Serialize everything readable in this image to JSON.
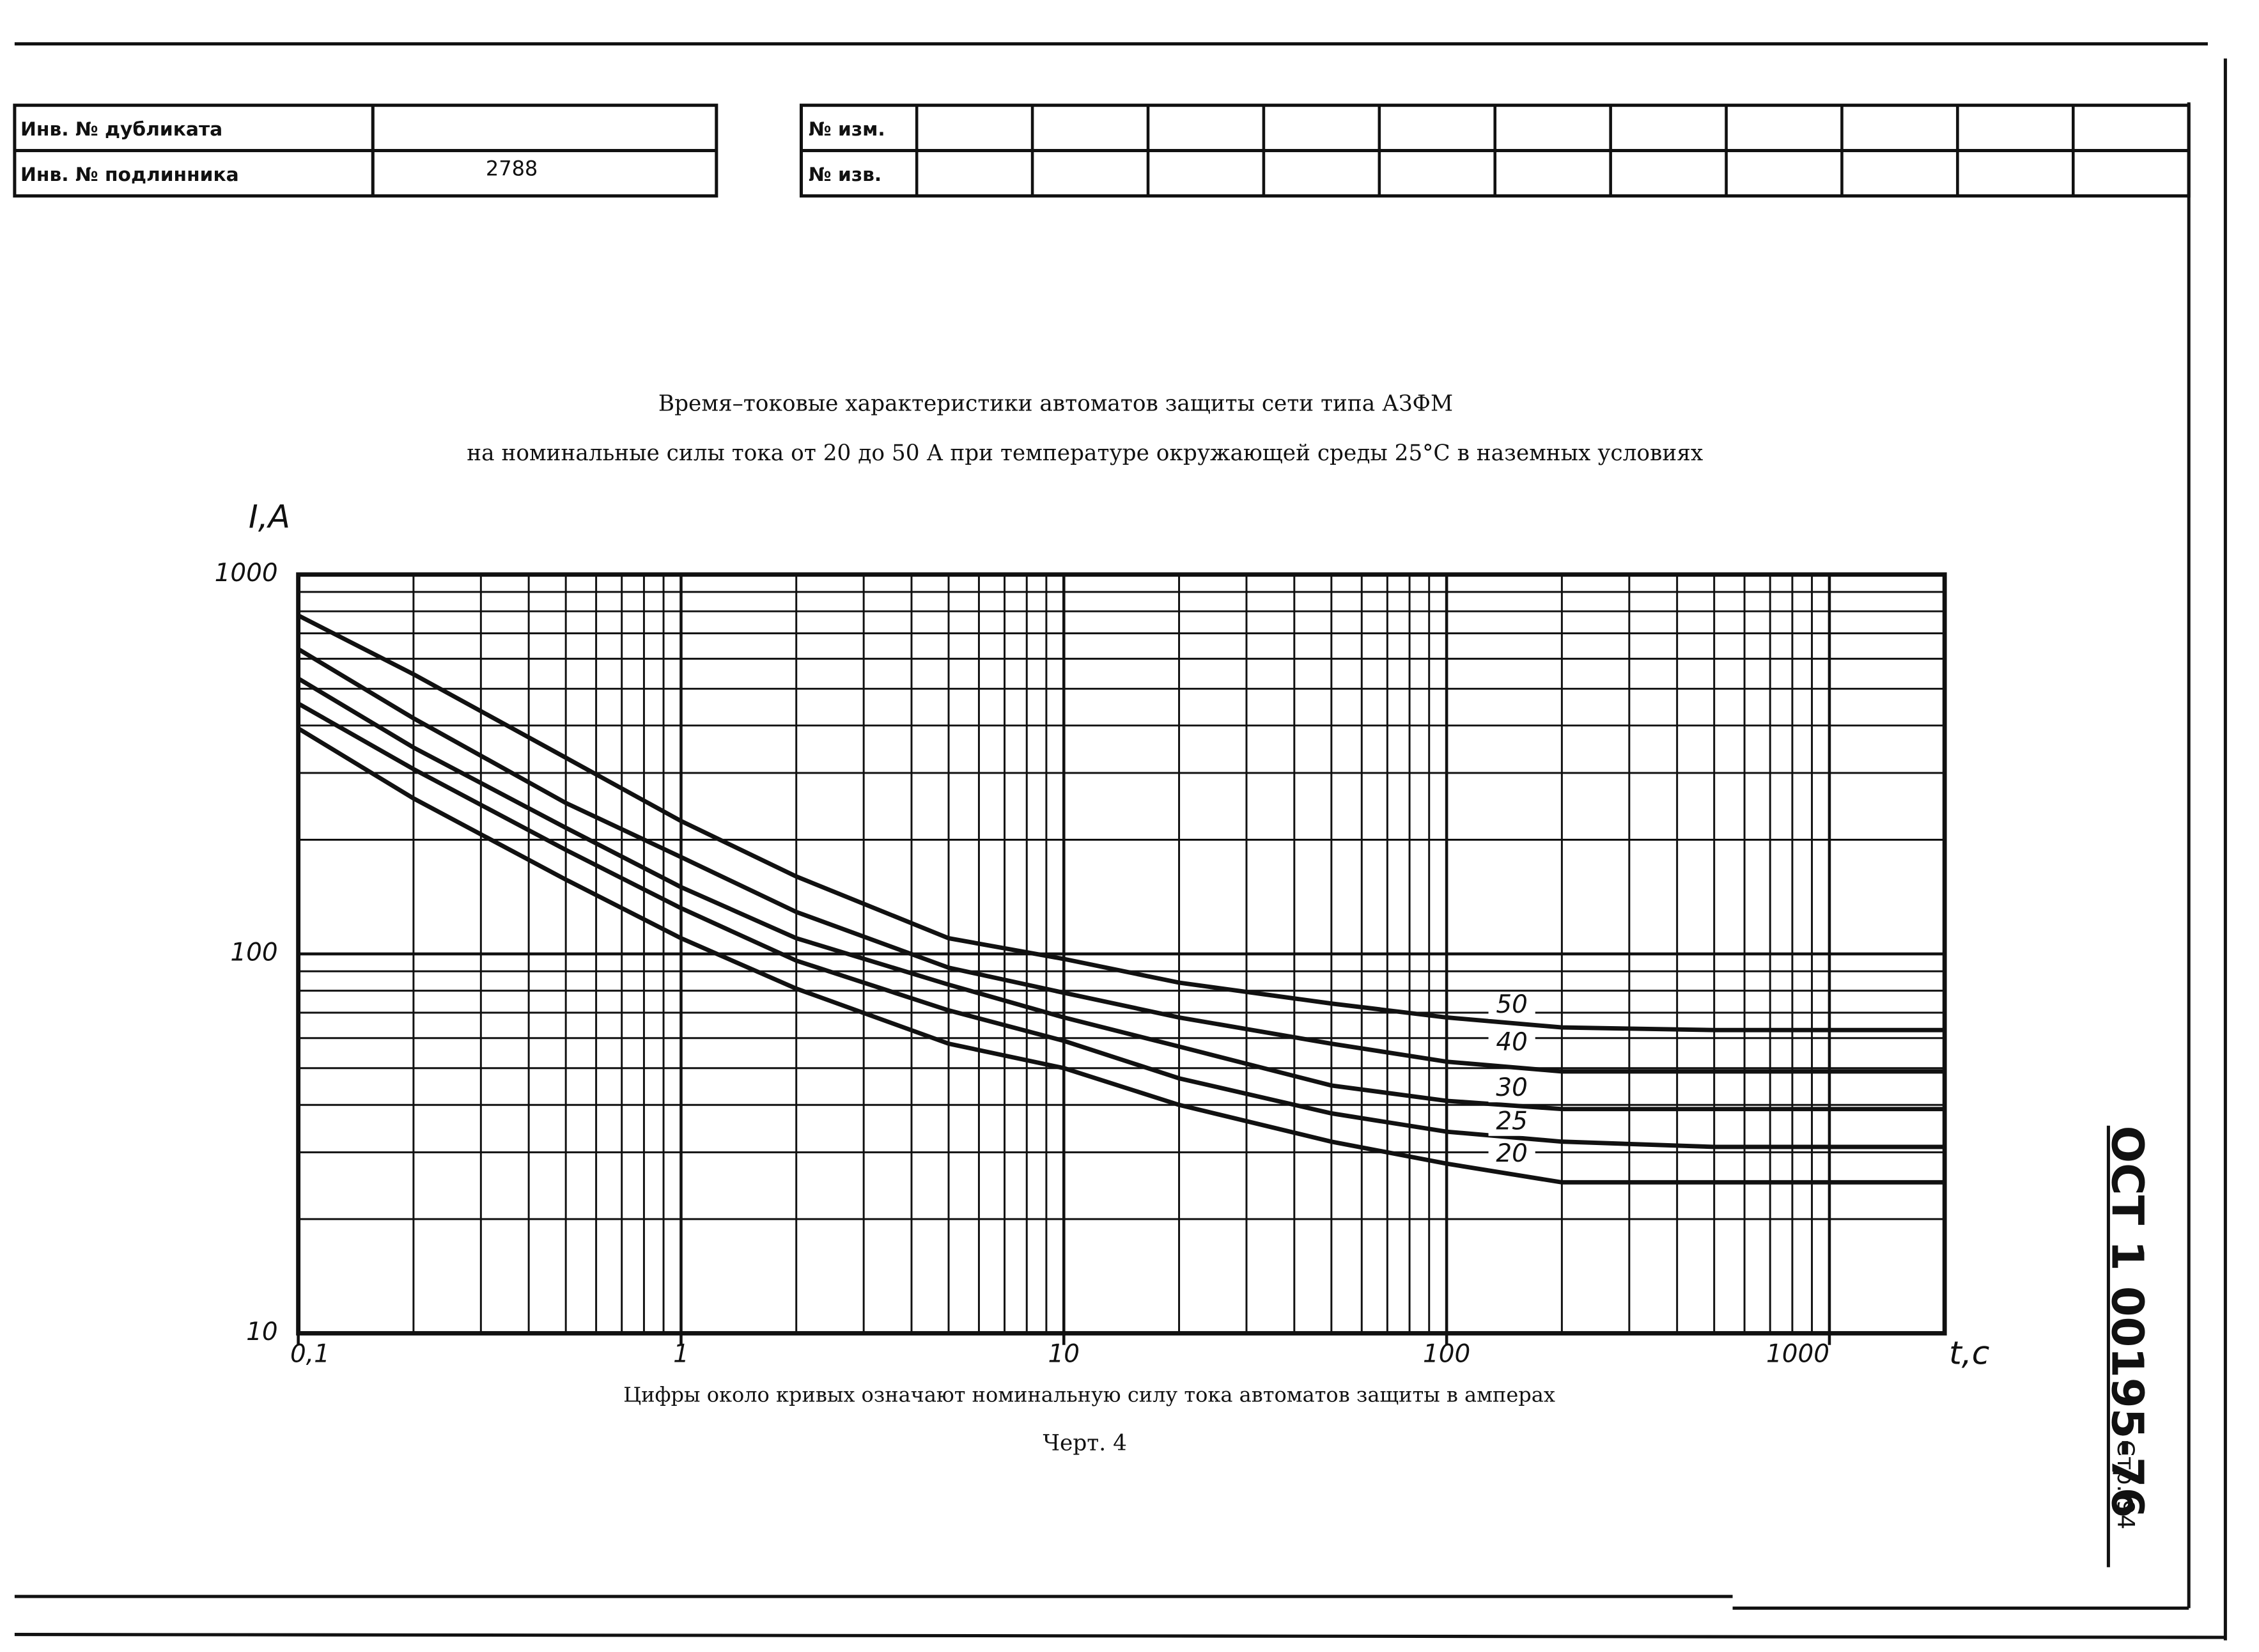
{
  "header": {
    "rows": [
      [
        "Инв. № дубликата",
        ""
      ],
      [
        "Инв. № подлинника",
        "2788"
      ]
    ],
    "change_rows": [
      "№ изм.",
      "№ изв."
    ]
  },
  "chart_data": {
    "type": "line",
    "title": "Время–токовые характеристики автоматов защиты сети типа АЗФМ",
    "subtitle": "на номинальные силы тока от 20 до 50 А при температуре окружающей среды 25°С в наземных условиях",
    "y_label": "I,A",
    "x_label": "t,c",
    "x": [
      0.1,
      0.2,
      0.5,
      1,
      2,
      5,
      10,
      20,
      50,
      100,
      200,
      500,
      2000
    ],
    "series": [
      {
        "name": "20",
        "color": "#111111",
        "values": [
          393,
          257,
          157,
          110,
          81,
          58,
          50,
          40,
          32,
          28,
          25,
          25,
          25
        ]
      },
      {
        "name": "25",
        "color": "#111111",
        "values": [
          457,
          307,
          188,
          132,
          96,
          71,
          59,
          47,
          38,
          34,
          32,
          31,
          31
        ]
      },
      {
        "name": "30",
        "color": "#111111",
        "values": [
          532,
          350,
          215,
          150,
          110,
          83,
          68,
          57,
          45,
          41,
          39,
          39,
          39
        ]
      },
      {
        "name": "40",
        "color": "#111111",
        "values": [
          636,
          418,
          250,
          180,
          129,
          92,
          79,
          68,
          58,
          52,
          49,
          49,
          49
        ]
      },
      {
        "name": "50",
        "color": "#111111",
        "values": [
          780,
          546,
          329,
          224,
          160,
          110,
          97,
          84,
          74,
          68,
          64,
          63,
          63
        ]
      }
    ],
    "xlim": [
      0.1,
      2000
    ],
    "ylim": [
      10,
      1000
    ],
    "log_x": true,
    "log_y": true,
    "grid": true,
    "xticks": [
      {
        "value": 0.1,
        "label": "0,1"
      },
      1,
      10,
      100,
      1000
    ],
    "yticks": [
      10,
      100,
      1000
    ],
    "xminor": [
      0.2,
      0.3,
      0.4,
      0.5,
      0.6,
      0.7,
      0.8,
      0.9,
      2,
      3,
      4,
      5,
      6,
      7,
      8,
      9,
      20,
      30,
      40,
      50,
      60,
      70,
      80,
      90,
      200,
      300,
      400,
      500,
      600,
      700,
      800,
      900
    ],
    "yminor": [
      20,
      30,
      40,
      50,
      60,
      70,
      80,
      90,
      200,
      300,
      400,
      500,
      600,
      700,
      800,
      900
    ],
    "caption": "Цифры около кривых означают номинальную силу тока автоматов защиты в амперах",
    "figure": "Черт. 4"
  },
  "stamp": {
    "code": "ОСТ 1 00195-76",
    "page": "Стр. 94"
  }
}
